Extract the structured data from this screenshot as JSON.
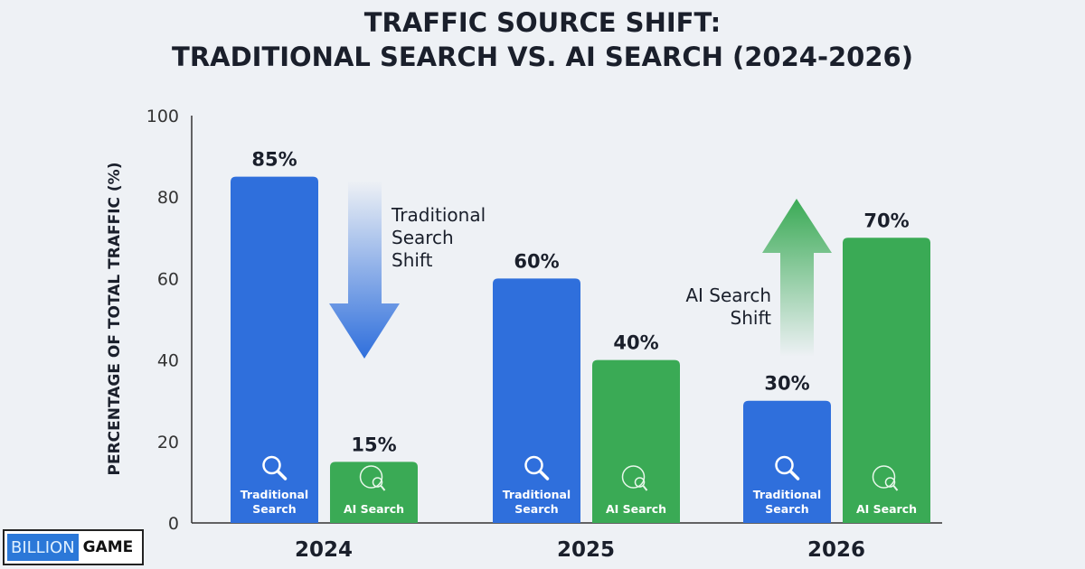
{
  "chart_data": {
    "type": "bar",
    "title": [
      "TRAFFIC SOURCE SHIFT:",
      "TRADITIONAL SEARCH VS. AI SEARCH (2024-2026)"
    ],
    "ylabel": "PERCENTAGE OF TOTAL TRAFFIC (%)",
    "ylim": [
      0,
      100
    ],
    "yticks": [
      0,
      20,
      40,
      60,
      80,
      100
    ],
    "categories": [
      "2024",
      "2025",
      "2026"
    ],
    "series": [
      {
        "name": "Traditional Search",
        "values": [
          85,
          60,
          30
        ],
        "labels": [
          "85%",
          "60%",
          "30%"
        ],
        "color": "#2f6fdc",
        "icon": "search-icon"
      },
      {
        "name": "AI Search",
        "values": [
          15,
          40,
          70
        ],
        "labels": [
          "15%",
          "40%",
          "70%"
        ],
        "color": "#3aaa55",
        "icon": "ai-brain-search-icon"
      }
    ],
    "annotations": [
      {
        "text": [
          "Traditional",
          "Search",
          "Shift"
        ],
        "arrow": "down",
        "color": "#2f6fdc"
      },
      {
        "text": [
          "AI Search",
          "Shift"
        ],
        "arrow": "up",
        "color": "#3aaa55"
      }
    ],
    "grid": false,
    "legend": "none"
  },
  "logo": {
    "part1": "BILLION",
    "part2": "GAME"
  }
}
